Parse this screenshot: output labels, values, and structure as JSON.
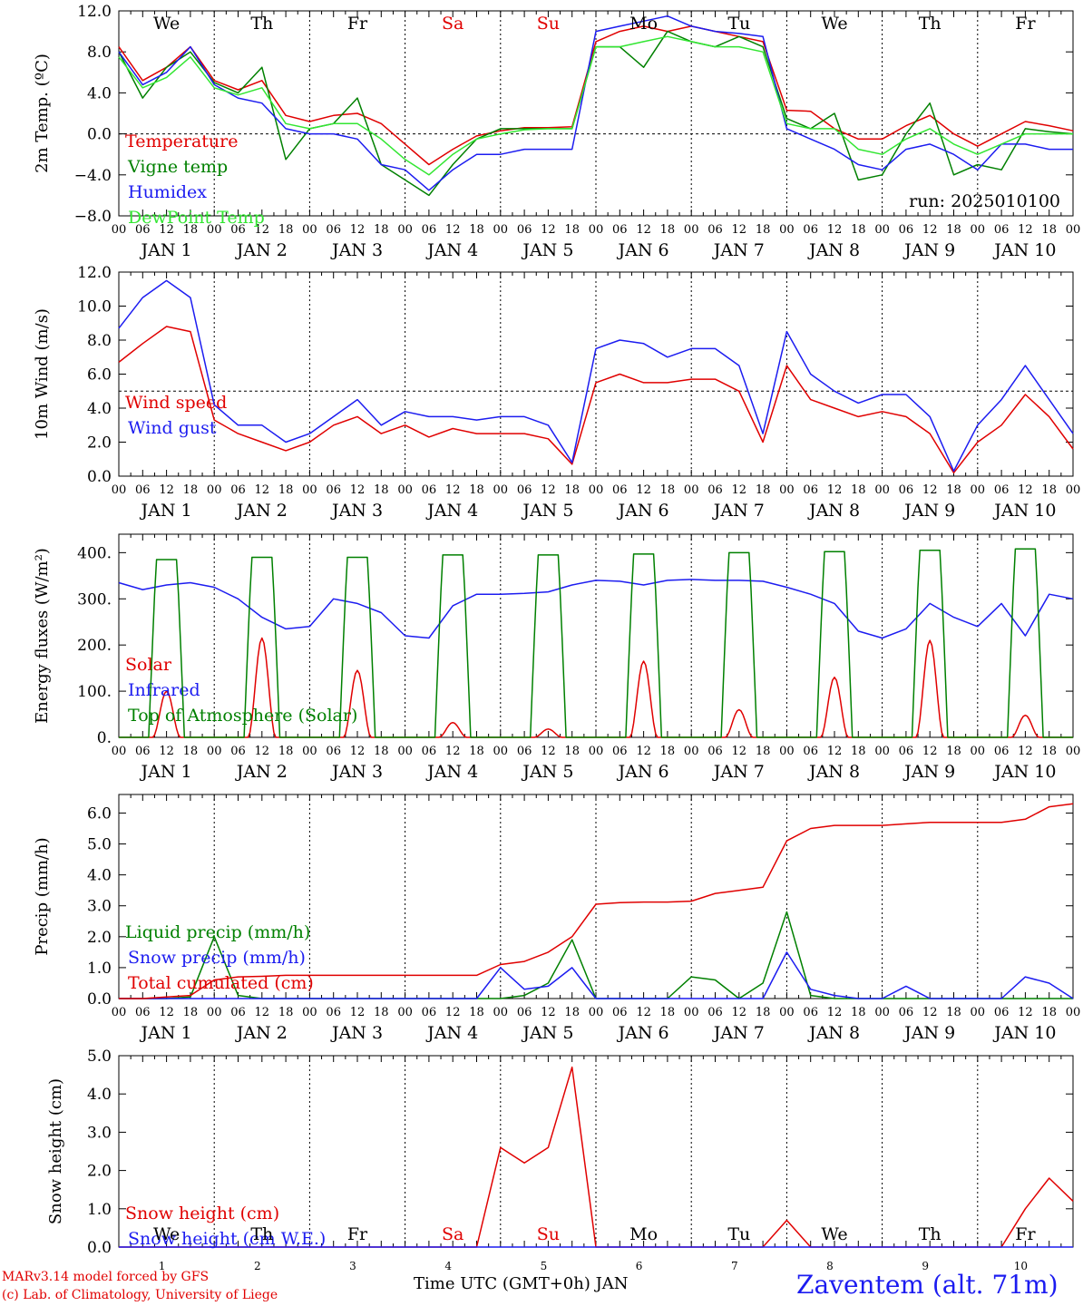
{
  "run_label": "run: 2025010100",
  "time_axis_label": "Time UTC (GMT+0h) JAN",
  "station_label": "Zaventem (alt. 71m)",
  "credits": [
    "MARv3.14 model forced by GFS",
    "(c) Lab. of Climatology, University of Liege"
  ],
  "days": [
    "We",
    "Th",
    "Fr",
    "Sa",
    "Su",
    "Mo",
    "Tu",
    "We",
    "Th",
    "Fr"
  ],
  "weekend_days": [
    "Sa",
    "Su"
  ],
  "hour_ticks": [
    "00",
    "06",
    "12",
    "18"
  ],
  "last_hour_tick": "00",
  "date_labels": [
    "JAN 1",
    "JAN 2",
    "JAN 3",
    "JAN 4",
    "JAN 5",
    "JAN 6",
    "JAN 7",
    "JAN 8",
    "JAN 9",
    "JAN 10"
  ],
  "bottom_day_numbers": [
    "1",
    "2",
    "3",
    "4",
    "5",
    "6",
    "7",
    "8",
    "9",
    "10"
  ],
  "colors": {
    "red": "#e00000",
    "green": "#008000",
    "blue": "#1c1cf0",
    "lightgreen": "#32e632",
    "black": "#000000"
  },
  "chart_data": [
    {
      "type": "line",
      "ylabel": "2m Temp. (ºC)",
      "ylim": [
        -8,
        12
      ],
      "yticks": [
        "12.0",
        "8.0",
        "4.0",
        "0.0",
        "−4.0",
        "−8.0"
      ],
      "yticks_values": [
        12,
        8,
        4,
        0,
        -4,
        -8
      ],
      "ref_line": 0,
      "x_hours": [
        0,
        6,
        12,
        18,
        24,
        30,
        36,
        42,
        48,
        54,
        60,
        66,
        72,
        78,
        84,
        90,
        96,
        102,
        108,
        114,
        120,
        126,
        132,
        138,
        144,
        150,
        156,
        162,
        168,
        174,
        180,
        186,
        192,
        198,
        204,
        210,
        216,
        222,
        228,
        234,
        240
      ],
      "series": [
        {
          "name": "Temperature",
          "color": "red",
          "values": [
            8.5,
            5.2,
            6.5,
            8.5,
            5.2,
            4.3,
            5.2,
            1.8,
            1.2,
            1.8,
            2.0,
            1.0,
            -1.0,
            -3.0,
            -1.5,
            -0.2,
            0.3,
            0.6,
            0.6,
            0.7,
            9.0,
            10.0,
            10.5,
            10.0,
            10.5,
            10.0,
            9.5,
            9.0,
            2.3,
            2.2,
            0.5,
            -0.5,
            -0.5,
            0.8,
            1.8,
            0.0,
            -1.2,
            0.0,
            1.2,
            0.8,
            0.3
          ]
        },
        {
          "name": "Vigne temp",
          "color": "green",
          "values": [
            8.0,
            3.5,
            6.5,
            8.0,
            5.0,
            4.0,
            6.5,
            -2.5,
            0.5,
            1.0,
            3.5,
            -3.0,
            -4.5,
            -6.0,
            -3.0,
            -0.5,
            0.5,
            0.5,
            0.5,
            0.5,
            8.5,
            8.5,
            6.5,
            10.0,
            9.0,
            8.5,
            9.5,
            8.5,
            1.5,
            0.5,
            2.0,
            -4.5,
            -4.0,
            0.0,
            3.0,
            -4.0,
            -3.0,
            -3.5,
            0.5,
            0.2,
            0.0
          ]
        },
        {
          "name": "Humidex",
          "color": "blue",
          "values": [
            8.0,
            4.8,
            6.0,
            8.5,
            4.8,
            3.5,
            3.0,
            0.5,
            0.0,
            0.0,
            -0.5,
            -3.0,
            -3.5,
            -5.5,
            -3.5,
            -2.0,
            -2.0,
            -1.5,
            -1.5,
            -1.5,
            10.0,
            10.5,
            11.0,
            11.5,
            10.5,
            10.0,
            9.8,
            9.5,
            0.5,
            -0.5,
            -1.5,
            -3.0,
            -3.5,
            -1.5,
            -1.0,
            -2.0,
            -3.5,
            -1.0,
            -1.0,
            -1.5,
            -1.5
          ]
        },
        {
          "name": "DewPoint Temp",
          "color": "lightgreen",
          "values": [
            7.5,
            4.5,
            5.5,
            7.5,
            4.5,
            3.8,
            4.5,
            1.0,
            0.5,
            1.0,
            1.0,
            -0.5,
            -2.5,
            -4.0,
            -2.0,
            -0.5,
            0.0,
            0.4,
            0.5,
            0.5,
            8.5,
            8.5,
            9.0,
            9.5,
            9.0,
            8.5,
            8.5,
            8.0,
            1.0,
            0.5,
            0.5,
            -1.5,
            -2.0,
            -0.5,
            0.5,
            -1.0,
            -2.0,
            -1.0,
            0.0,
            0.0,
            0.0
          ]
        }
      ]
    },
    {
      "type": "line",
      "ylabel": "10m Wind (m/s)",
      "ylim": [
        0,
        12
      ],
      "yticks": [
        "12.0",
        "10.0",
        "8.0",
        "6.0",
        "4.0",
        "2.0",
        "0.0"
      ],
      "yticks_values": [
        12,
        10,
        8,
        6,
        4,
        2,
        0
      ],
      "ref_line": 5,
      "x_hours": [
        0,
        6,
        12,
        18,
        24,
        30,
        36,
        42,
        48,
        54,
        60,
        66,
        72,
        78,
        84,
        90,
        96,
        102,
        108,
        114,
        120,
        126,
        132,
        138,
        144,
        150,
        156,
        162,
        168,
        174,
        180,
        186,
        192,
        198,
        204,
        210,
        216,
        222,
        228,
        234,
        240
      ],
      "series": [
        {
          "name": "Wind speed",
          "color": "red",
          "values": [
            6.7,
            7.8,
            8.8,
            8.5,
            3.3,
            2.5,
            2.0,
            1.5,
            2.0,
            3.0,
            3.5,
            2.5,
            3.0,
            2.3,
            2.8,
            2.5,
            2.5,
            2.5,
            2.2,
            0.7,
            5.5,
            6.0,
            5.5,
            5.5,
            5.7,
            5.7,
            5.0,
            2.0,
            6.5,
            4.5,
            4.0,
            3.5,
            3.8,
            3.5,
            2.5,
            0.2,
            2.0,
            3.0,
            4.8,
            3.5,
            1.6
          ]
        },
        {
          "name": "Wind gust",
          "color": "blue",
          "values": [
            8.7,
            10.5,
            11.5,
            10.5,
            4.2,
            3.0,
            3.0,
            2.0,
            2.5,
            3.5,
            4.5,
            3.0,
            3.8,
            3.5,
            3.5,
            3.3,
            3.5,
            3.5,
            3.0,
            0.8,
            7.5,
            8.0,
            7.8,
            7.0,
            7.5,
            7.5,
            6.5,
            2.5,
            8.5,
            6.0,
            5.0,
            4.3,
            4.8,
            4.8,
            3.5,
            0.3,
            3.0,
            4.5,
            6.5,
            4.5,
            2.5
          ]
        }
      ]
    },
    {
      "type": "line",
      "ylabel": "Energy fluxes (W/m²)",
      "ylim": [
        0,
        440
      ],
      "yticks": [
        "400.",
        "300.",
        "200.",
        "100.",
        "0."
      ],
      "yticks_values": [
        400,
        300,
        200,
        100,
        0
      ],
      "x_hours": [
        0,
        6,
        12,
        18,
        24,
        30,
        36,
        42,
        48,
        54,
        60,
        66,
        72,
        78,
        84,
        90,
        96,
        102,
        108,
        114,
        120,
        126,
        132,
        138,
        144,
        150,
        156,
        162,
        168,
        174,
        180,
        186,
        192,
        198,
        204,
        210,
        216,
        222,
        228,
        234,
        240
      ],
      "series": [
        {
          "name": "Solar",
          "color": "red",
          "peaks": [
            100,
            215,
            145,
            32,
            18,
            165,
            60,
            130,
            210,
            48
          ]
        },
        {
          "name": "Infrared",
          "color": "blue",
          "values": [
            335,
            320,
            330,
            335,
            325,
            300,
            260,
            235,
            240,
            300,
            290,
            270,
            220,
            215,
            285,
            310,
            310,
            312,
            315,
            330,
            340,
            338,
            330,
            340,
            342,
            340,
            340,
            338,
            325,
            310,
            290,
            230,
            215,
            235,
            290,
            260,
            240,
            290,
            220,
            310,
            300
          ]
        },
        {
          "name": "Top of Atmosphere (Solar)",
          "color": "green",
          "peaks": [
            385,
            390,
            390,
            395,
            395,
            397,
            400,
            402,
            405,
            408
          ]
        }
      ]
    },
    {
      "type": "line",
      "ylabel": "Precip (mm/h)",
      "ylim": [
        0,
        6.6
      ],
      "yticks": [
        "6.0",
        "5.0",
        "4.0",
        "3.0",
        "2.0",
        "1.0",
        "0.0"
      ],
      "yticks_values": [
        6,
        5,
        4,
        3,
        2,
        1,
        0
      ],
      "x_hours": [
        0,
        6,
        12,
        18,
        24,
        30,
        36,
        42,
        48,
        54,
        60,
        66,
        72,
        78,
        84,
        90,
        96,
        102,
        108,
        114,
        120,
        126,
        132,
        138,
        144,
        150,
        156,
        162,
        168,
        174,
        180,
        186,
        192,
        198,
        204,
        210,
        216,
        222,
        228,
        234,
        240
      ],
      "series": [
        {
          "name": "Liquid precip (mm/h)",
          "color": "green",
          "values": [
            0,
            0,
            0,
            0.05,
            2.0,
            0.1,
            0,
            0,
            0,
            0,
            0,
            0,
            0,
            0,
            0,
            0,
            0,
            0.1,
            0.5,
            1.9,
            0,
            0,
            0,
            0,
            0.7,
            0.6,
            0,
            0.5,
            2.8,
            0.1,
            0,
            0,
            0,
            0,
            0,
            0,
            0,
            0,
            0,
            0,
            0
          ]
        },
        {
          "name": "Snow precip (mm/h)",
          "color": "blue",
          "values": [
            0,
            0,
            0,
            0,
            0,
            0,
            0,
            0,
            0,
            0,
            0,
            0,
            0,
            0,
            0,
            0,
            1.0,
            0.3,
            0.4,
            1.0,
            0,
            0,
            0,
            0,
            0,
            0,
            0,
            0,
            1.5,
            0.3,
            0.1,
            0,
            0,
            0.4,
            0,
            0,
            0,
            0,
            0.7,
            0.5,
            0
          ]
        },
        {
          "name": "Total cumulated (cm)",
          "color": "red",
          "values": [
            0,
            0,
            0.05,
            0.1,
            0.6,
            0.7,
            0.72,
            0.75,
            0.75,
            0.75,
            0.75,
            0.75,
            0.75,
            0.75,
            0.75,
            0.75,
            1.1,
            1.2,
            1.5,
            2.0,
            3.05,
            3.1,
            3.12,
            3.12,
            3.15,
            3.4,
            3.5,
            3.6,
            5.1,
            5.5,
            5.6,
            5.6,
            5.6,
            5.65,
            5.7,
            5.7,
            5.7,
            5.7,
            5.8,
            6.2,
            6.3
          ]
        }
      ]
    },
    {
      "type": "line",
      "ylabel": "Snow height (cm)",
      "ylim": [
        0,
        5
      ],
      "yticks": [
        "5.0",
        "4.0",
        "3.0",
        "2.0",
        "1.0",
        "0.0"
      ],
      "yticks_values": [
        5,
        4,
        3,
        2,
        1,
        0
      ],
      "x_hours": [
        0,
        6,
        12,
        18,
        24,
        30,
        36,
        42,
        48,
        54,
        60,
        66,
        72,
        78,
        84,
        90,
        96,
        102,
        108,
        114,
        120,
        126,
        132,
        138,
        144,
        150,
        156,
        162,
        168,
        174,
        180,
        186,
        192,
        198,
        204,
        210,
        216,
        222,
        228,
        234,
        240
      ],
      "series": [
        {
          "name": "Snow height (cm)",
          "color": "red",
          "values": [
            0,
            0,
            0,
            0,
            0,
            0,
            0,
            0,
            0,
            0,
            0,
            0,
            0,
            0,
            0,
            0,
            2.6,
            2.2,
            2.6,
            4.7,
            0,
            0,
            0,
            0,
            0,
            0,
            0,
            0,
            0.7,
            0,
            0,
            0,
            0,
            0,
            0,
            0,
            0,
            0,
            1.0,
            1.8,
            1.2
          ]
        },
        {
          "name": "Snow height (cm W.E.)",
          "color": "blue",
          "values": [
            0,
            0,
            0,
            0,
            0,
            0,
            0,
            0,
            0,
            0,
            0,
            0,
            0,
            0,
            0,
            0,
            0,
            0,
            0,
            0,
            0,
            0,
            0,
            0,
            0,
            0,
            0,
            0,
            0,
            0,
            0,
            0,
            0,
            0,
            0,
            0,
            0,
            0,
            0,
            0,
            0
          ]
        }
      ]
    }
  ]
}
